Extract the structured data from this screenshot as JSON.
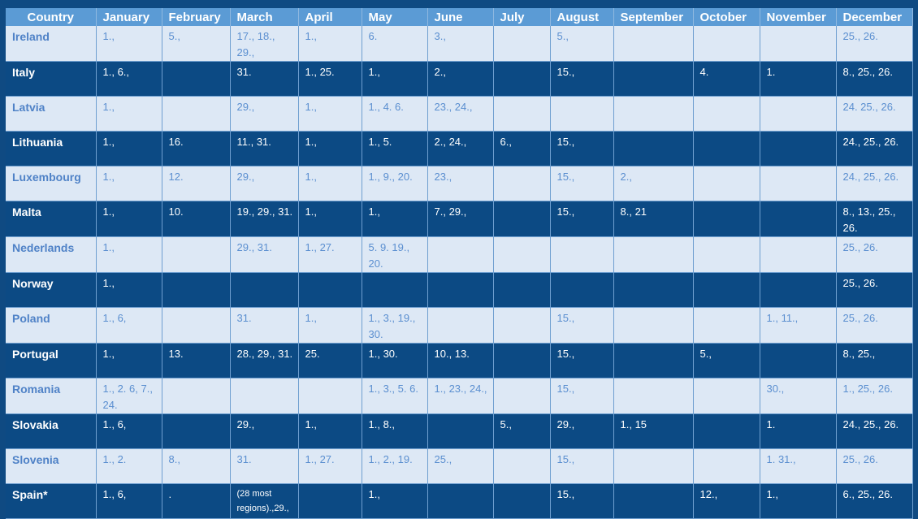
{
  "columns": [
    "Country",
    "January",
    "February",
    "March",
    "April",
    "May",
    "June",
    "July",
    "August",
    "September",
    "October",
    "November",
    "December"
  ],
  "rows": [
    {
      "country": "Ireland",
      "cells": [
        "1.,",
        "5.,",
        "17., 18., 29.,",
        "1.,",
        "6.",
        "3.,",
        "",
        "5.,",
        "",
        "",
        "",
        "25., 26."
      ]
    },
    {
      "country": "Italy",
      "cells": [
        "1., 6.,",
        "",
        "31.",
        "1., 25.",
        "1.,",
        "2.,",
        "",
        "15.,",
        "",
        "4.",
        "1.",
        "8., 25., 26."
      ]
    },
    {
      "country": "Latvia",
      "cells": [
        "1.,",
        "",
        "29.,",
        "1.,",
        "1., 4. 6.",
        "23., 24.,",
        "",
        "",
        "",
        "",
        "",
        "24. 25., 26."
      ]
    },
    {
      "country": "Lithuania",
      "cells": [
        "1.,",
        "16.",
        "11., 31.",
        "1.,",
        "1., 5.",
        "2., 24.,",
        "6.,",
        "15.,",
        "",
        "",
        "",
        "24., 25., 26."
      ]
    },
    {
      "country": "Luxembourg",
      "cells": [
        "1.,",
        "12.",
        "29.,",
        "1.,",
        "1., 9., 20.",
        "23.,",
        "",
        "15.,",
        "2.,",
        "",
        "",
        "24., 25., 26."
      ]
    },
    {
      "country": "Malta",
      "cells": [
        "1.,",
        "10.",
        "19., 29., 31.",
        "1.,",
        "1.,",
        "7., 29.,",
        "",
        "15.,",
        "8., 21",
        "",
        "",
        "8., 13., 25., 26."
      ]
    },
    {
      "country": "Nederlands",
      "cells": [
        "1.,",
        "",
        "29., 31.",
        "1., 27.",
        "5. 9. 19., 20.",
        "",
        "",
        "",
        "",
        "",
        "",
        "25., 26."
      ]
    },
    {
      "country": "Norway",
      "cells": [
        "1.,",
        "",
        "",
        "",
        "",
        "",
        "",
        "",
        "",
        "",
        "",
        "25., 26."
      ]
    },
    {
      "country": "Poland",
      "cells": [
        "1., 6,",
        "",
        "31.",
        "1.,",
        "1., 3., 19., 30.",
        "",
        "",
        "15.,",
        "",
        "",
        "1., 11.,",
        "25., 26."
      ]
    },
    {
      "country": "Portugal",
      "cells": [
        "1.,",
        "13.",
        "28., 29., 31.",
        "25.",
        "1., 30.",
        "10., 13.",
        "",
        "15.,",
        "",
        "5.,",
        "",
        "8., 25.,"
      ]
    },
    {
      "country": "Romania",
      "cells": [
        "1., 2. 6, 7., 24.",
        "",
        "",
        "",
        "1., 3., 5. 6.",
        "1., 23., 24.,",
        "",
        "15.,",
        "",
        "",
        "30.,",
        "1., 25., 26."
      ]
    },
    {
      "country": "Slovakia",
      "cells": [
        "1., 6,",
        "",
        "29.,",
        "1.,",
        "1., 8.,",
        "",
        "5.,",
        "29.,",
        "1., 15",
        "",
        "1.",
        "24., 25., 26."
      ]
    },
    {
      "country": "Slovenia",
      "cells": [
        "1., 2.",
        "8.,",
        "31.",
        "1., 27.",
        "1., 2., 19.",
        "25.,",
        "",
        "15.,",
        "",
        "",
        "1. 31.,",
        "25., 26."
      ]
    },
    {
      "country": "Spain*",
      "cells": [
        "1., 6,",
        ".",
        "(28 most regions).,29.,",
        "",
        "1.,",
        "",
        "",
        "15.,",
        "",
        "12.,",
        "1.,",
        "6., 25., 26."
      ]
    }
  ]
}
